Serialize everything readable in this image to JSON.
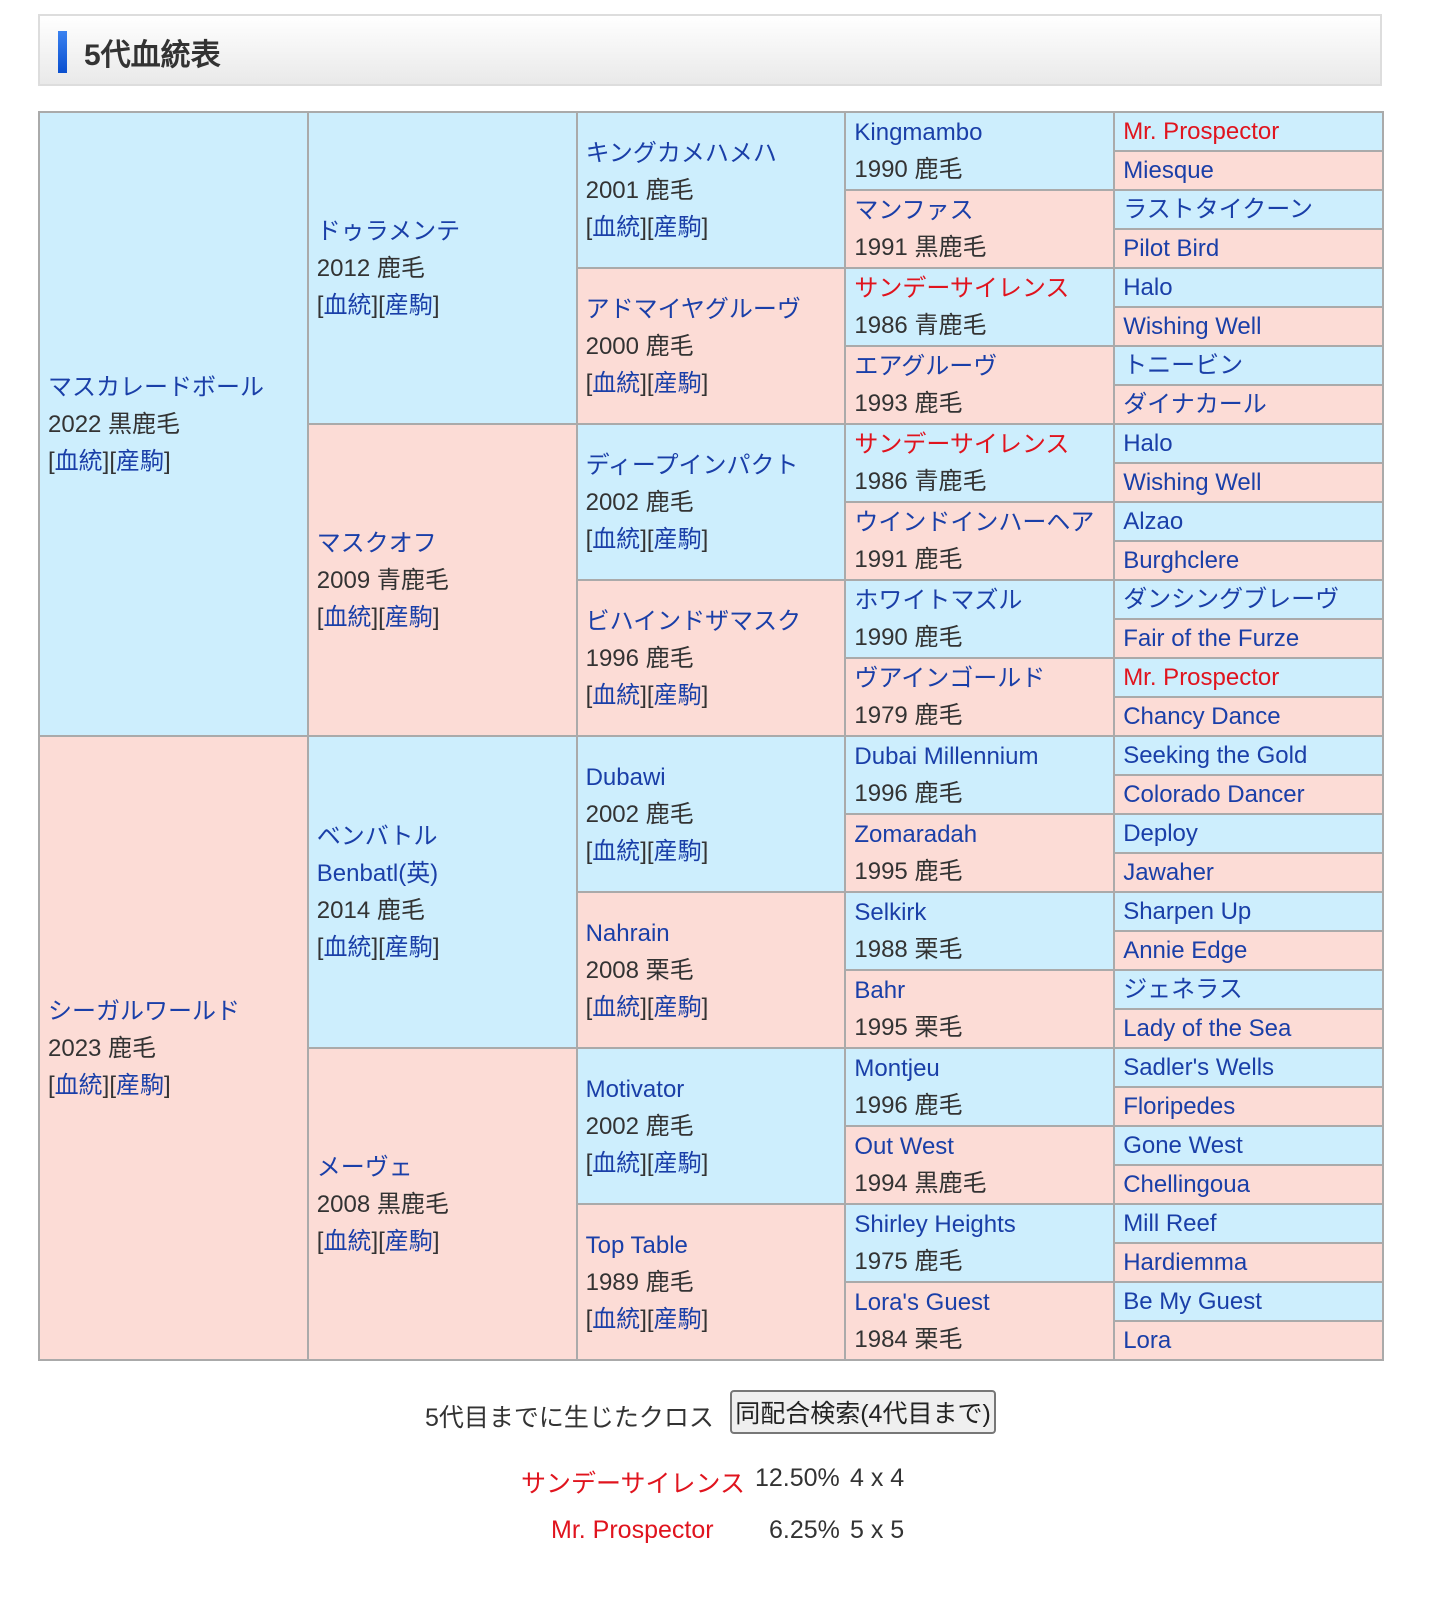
{
  "title": "5代血統表",
  "links": {
    "pedigree": "血統",
    "offspring": "産駒"
  },
  "colors": {
    "sire_bg": "#cdeefd",
    "dam_bg": "#fcdcd6",
    "cross": "#e0141e",
    "link": "#1a3fa8"
  },
  "gen1": [
    {
      "name": "マスカレードボール",
      "info": "2022 黒鹿毛"
    },
    {
      "name": "シーガルワールド",
      "info": "2023 鹿毛"
    }
  ],
  "gen2": [
    {
      "name": "ドゥラメンテ",
      "info": "2012 鹿毛"
    },
    {
      "name": "マスクオフ",
      "info": "2009 青鹿毛"
    },
    {
      "name": "ベンバトル",
      "alt": "Benbatl(英)",
      "info": "2014 鹿毛"
    },
    {
      "name": "メーヴェ",
      "info": "2008 黒鹿毛"
    }
  ],
  "gen3": [
    {
      "name": "キングカメハメハ",
      "info": "2001 鹿毛"
    },
    {
      "name": "アドマイヤグルーヴ",
      "info": "2000 鹿毛"
    },
    {
      "name": "ディープインパクト",
      "info": "2002 鹿毛"
    },
    {
      "name": "ビハインドザマスク",
      "info": "1996 鹿毛"
    },
    {
      "name": "Dubawi",
      "info": "2002 鹿毛"
    },
    {
      "name": "Nahrain",
      "info": "2008 栗毛"
    },
    {
      "name": "Motivator",
      "info": "2002 鹿毛"
    },
    {
      "name": "Top Table",
      "info": "1989 鹿毛"
    }
  ],
  "gen4": [
    {
      "name": "Kingmambo",
      "info": "1990 鹿毛"
    },
    {
      "name": "マンファス",
      "info": "1991 黒鹿毛"
    },
    {
      "name": "サンデーサイレンス",
      "info": "1986 青鹿毛",
      "cross": true
    },
    {
      "name": "エアグルーヴ",
      "info": "1993 鹿毛"
    },
    {
      "name": "サンデーサイレンス",
      "info": "1986 青鹿毛",
      "cross": true
    },
    {
      "name": "ウインドインハーヘア",
      "info": "1991 鹿毛"
    },
    {
      "name": "ホワイトマズル",
      "info": "1990 鹿毛"
    },
    {
      "name": "ヴアインゴールド",
      "info": "1979 鹿毛"
    },
    {
      "name": "Dubai Millennium",
      "info": "1996 鹿毛"
    },
    {
      "name": "Zomaradah",
      "info": "1995 鹿毛"
    },
    {
      "name": "Selkirk",
      "info": "1988 栗毛"
    },
    {
      "name": "Bahr",
      "info": "1995 栗毛"
    },
    {
      "name": "Montjeu",
      "info": "1996 鹿毛"
    },
    {
      "name": "Out West",
      "info": "1994 黒鹿毛"
    },
    {
      "name": "Shirley Heights",
      "info": "1975 鹿毛"
    },
    {
      "name": "Lora's Guest",
      "info": "1984 栗毛"
    }
  ],
  "gen5": [
    {
      "name": "Mr. Prospector",
      "cross": true
    },
    {
      "name": "Miesque"
    },
    {
      "name": "ラストタイクーン"
    },
    {
      "name": "Pilot Bird"
    },
    {
      "name": "Halo"
    },
    {
      "name": "Wishing Well"
    },
    {
      "name": "トニービン"
    },
    {
      "name": "ダイナカール"
    },
    {
      "name": "Halo"
    },
    {
      "name": "Wishing Well"
    },
    {
      "name": "Alzao"
    },
    {
      "name": "Burghclere"
    },
    {
      "name": "ダンシングブレーヴ"
    },
    {
      "name": "Fair of the Furze"
    },
    {
      "name": "Mr. Prospector",
      "cross": true
    },
    {
      "name": "Chancy Dance"
    },
    {
      "name": "Seeking the Gold"
    },
    {
      "name": "Colorado Dancer"
    },
    {
      "name": "Deploy"
    },
    {
      "name": "Jawaher"
    },
    {
      "name": "Sharpen Up"
    },
    {
      "name": "Annie Edge"
    },
    {
      "name": "ジェネラス"
    },
    {
      "name": "Lady of the Sea"
    },
    {
      "name": "Sadler's Wells"
    },
    {
      "name": "Floripedes"
    },
    {
      "name": "Gone West"
    },
    {
      "name": "Chellingoua"
    },
    {
      "name": "Mill Reef"
    },
    {
      "name": "Hardiemma"
    },
    {
      "name": "Be My Guest"
    },
    {
      "name": "Lora"
    }
  ],
  "crosses": {
    "label": "5代目までに生じたクロス",
    "button": "同配合検索(4代目まで)",
    "items": [
      {
        "name": "サンデーサイレンス",
        "pct": "12.50%",
        "gen": "4 x 4"
      },
      {
        "name": "Mr. Prospector",
        "pct": "6.25%",
        "gen": "5 x 5"
      }
    ]
  }
}
